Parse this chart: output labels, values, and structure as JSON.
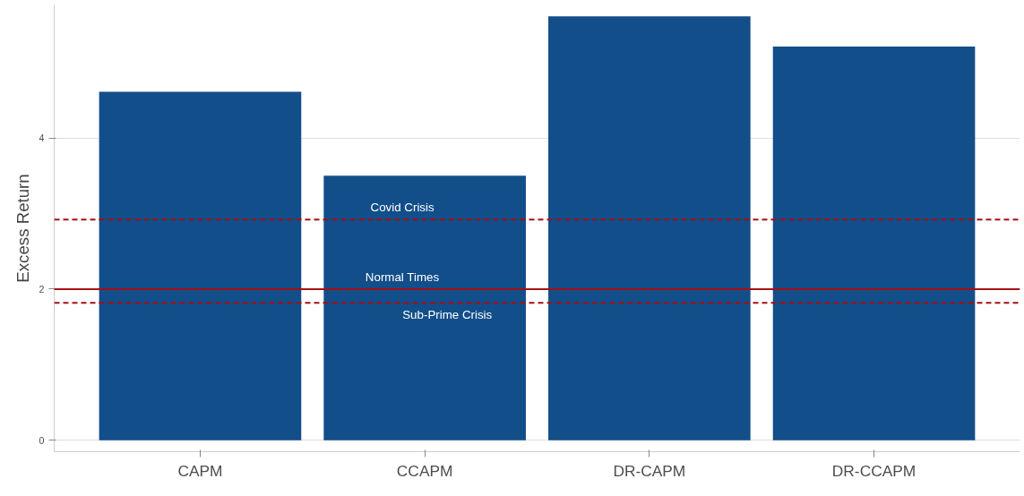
{
  "chart_data": {
    "type": "bar",
    "ylabel": "Excess Return",
    "categories": [
      "CAPM",
      "CCAPM",
      "DR-CAPM",
      "DR-CCAPM"
    ],
    "values": [
      4.61,
      3.5,
      5.61,
      5.21
    ],
    "color": "#124e89",
    "ylim": [
      -0.15,
      5.76
    ],
    "yticks": [
      0,
      2,
      4
    ],
    "grid": "y",
    "ref_lines": [
      {
        "axis": "y",
        "value": 2.92,
        "color": "#a50f15",
        "line_style": "dashed",
        "label": "Covid Crisis"
      },
      {
        "axis": "y",
        "value": 2.0,
        "color": "#a50f15",
        "line_style": "solid",
        "label": "Normal Times"
      },
      {
        "axis": "y",
        "value": 1.82,
        "color": "#a50f15",
        "line_style": "dashed",
        "label": "Sub-Prime Crisis"
      }
    ]
  }
}
